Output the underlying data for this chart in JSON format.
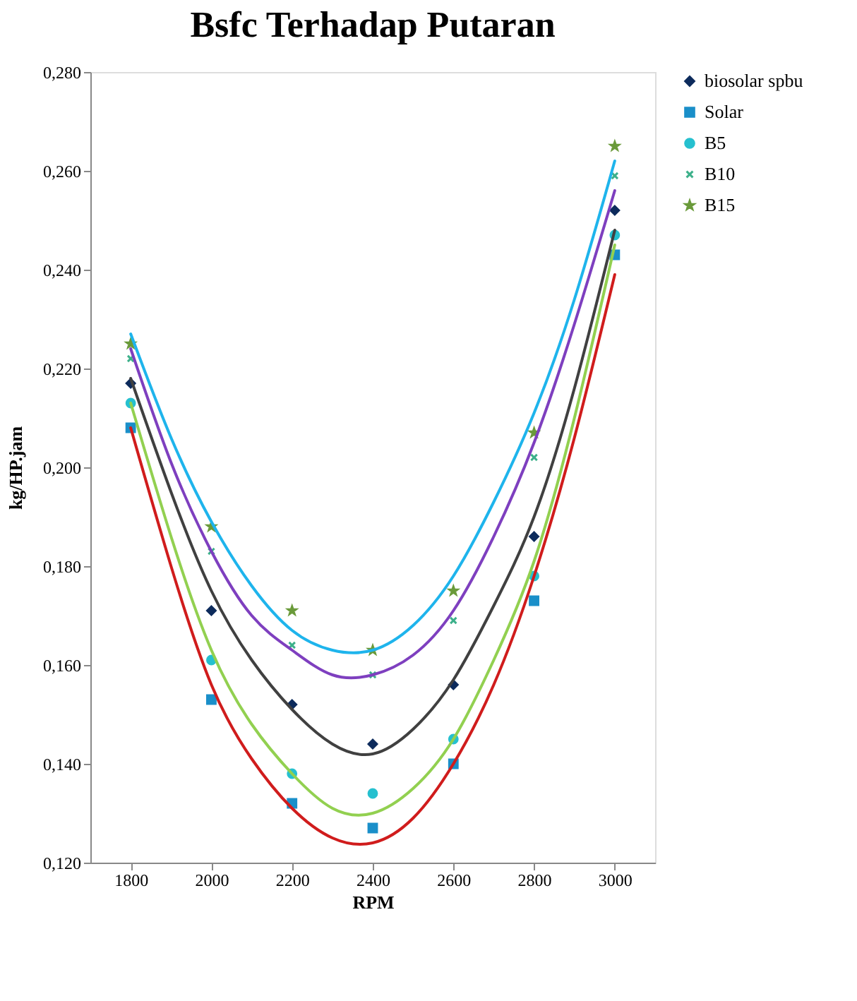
{
  "chart_data": {
    "type": "scatter",
    "title": "Bsfc Terhadap Putaran",
    "xlabel": "RPM",
    "ylabel": "kg/HP.jam",
    "x": [
      1800,
      2000,
      2200,
      2400,
      2600,
      2800,
      3000
    ],
    "series": [
      {
        "name": "biosolar spbu",
        "color": "#0d2b5c",
        "marker": "diamond",
        "values": [
          0.217,
          0.171,
          0.152,
          0.144,
          0.156,
          0.186,
          0.252
        ]
      },
      {
        "name": "Solar",
        "color": "#1a8fc9",
        "marker": "square",
        "values": [
          0.208,
          0.153,
          0.132,
          0.127,
          0.14,
          0.173,
          0.243
        ]
      },
      {
        "name": "B5",
        "color": "#26c0cf",
        "marker": "circle",
        "values": [
          0.213,
          0.161,
          0.138,
          0.134,
          0.145,
          0.178,
          0.247
        ]
      },
      {
        "name": "B10",
        "color": "#3cb08a",
        "marker": "cross",
        "values": [
          0.222,
          0.183,
          0.164,
          0.158,
          0.169,
          0.202,
          0.259
        ]
      },
      {
        "name": "B15",
        "color": "#6a9a3a",
        "marker": "star",
        "values": [
          0.225,
          0.188,
          0.171,
          0.163,
          0.175,
          0.207,
          0.265
        ]
      },
      {
        "type": "line",
        "color": "#404040",
        "x": [
          1800,
          1900,
          2000,
          2100,
          2200,
          2300,
          2400,
          2500,
          2600,
          2700,
          2800,
          2900,
          3000
        ],
        "values": [
          0.218,
          0.195,
          0.175,
          0.161,
          0.151,
          0.144,
          0.142,
          0.147,
          0.157,
          0.172,
          0.19,
          0.216,
          0.248
        ]
      },
      {
        "type": "line",
        "color": "#d01c1c",
        "x": [
          1800,
          1900,
          2000,
          2100,
          2200,
          2300,
          2400,
          2500,
          2600,
          2700,
          2800,
          2900,
          3000
        ],
        "values": [
          0.208,
          0.18,
          0.156,
          0.141,
          0.131,
          0.125,
          0.124,
          0.129,
          0.14,
          0.156,
          0.178,
          0.206,
          0.239
        ]
      },
      {
        "type": "line",
        "color": "#92d050",
        "x": [
          1800,
          1900,
          2000,
          2100,
          2200,
          2300,
          2400,
          2500,
          2600,
          2700,
          2800,
          2900,
          3000
        ],
        "values": [
          0.213,
          0.186,
          0.163,
          0.148,
          0.138,
          0.131,
          0.13,
          0.135,
          0.145,
          0.161,
          0.181,
          0.21,
          0.245
        ]
      },
      {
        "type": "line",
        "color": "#7e3fbf",
        "x": [
          1800,
          1900,
          2000,
          2100,
          2200,
          2300,
          2400,
          2500,
          2600,
          2700,
          2800,
          2900,
          3000
        ],
        "values": [
          0.224,
          0.201,
          0.183,
          0.17,
          0.163,
          0.158,
          0.158,
          0.162,
          0.171,
          0.186,
          0.205,
          0.229,
          0.256
        ]
      },
      {
        "type": "line",
        "color": "#1eb4ec",
        "x": [
          1800,
          1900,
          2000,
          2100,
          2200,
          2300,
          2400,
          2500,
          2600,
          2700,
          2800,
          2900,
          3000
        ],
        "values": [
          0.227,
          0.206,
          0.189,
          0.176,
          0.167,
          0.163,
          0.163,
          0.168,
          0.178,
          0.193,
          0.211,
          0.234,
          0.262
        ]
      }
    ],
    "xlim": [
      1700,
      3100
    ],
    "xticks": [
      1800,
      2000,
      2200,
      2400,
      2600,
      2800,
      3000
    ],
    "ylim": [
      0.12,
      0.28
    ],
    "yticks": [
      {
        "value": 0.12,
        "label": "0,120"
      },
      {
        "value": 0.14,
        "label": "0,140"
      },
      {
        "value": 0.16,
        "label": "0,160"
      },
      {
        "value": 0.18,
        "label": "0,180"
      },
      {
        "value": 0.2,
        "label": "0,200"
      },
      {
        "value": 0.22,
        "label": "0,220"
      },
      {
        "value": 0.24,
        "label": "0,240"
      },
      {
        "value": 0.26,
        "label": "0,260"
      },
      {
        "value": 0.28,
        "label": "0,280"
      }
    ],
    "grid": false,
    "legend": "right",
    "line_style": "solid"
  }
}
